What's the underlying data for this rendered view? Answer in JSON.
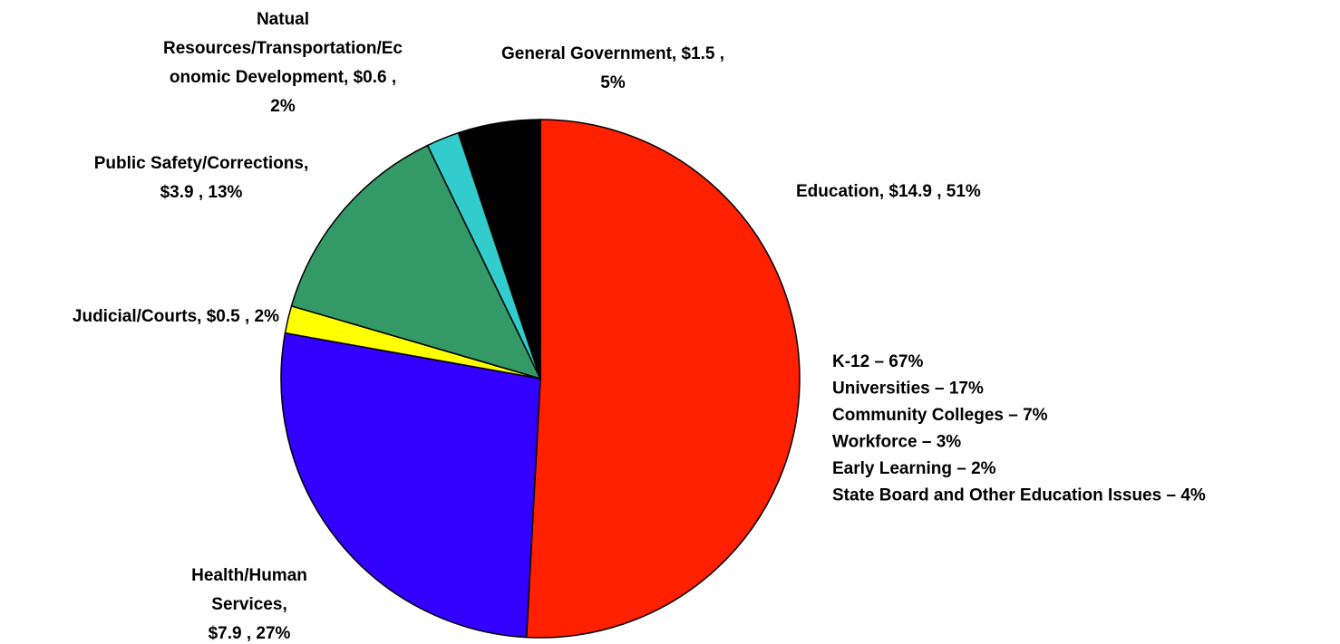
{
  "chart_data": {
    "type": "pie",
    "values": [
      14.9,
      7.9,
      0.5,
      3.9,
      0.6,
      1.5
    ],
    "value_labels": [
      [
        "Education, $14.9 , 51%"
      ],
      [
        "Health/Human",
        "Services,",
        "$7.9 , 27%"
      ],
      [
        "Judicial/Courts, $0.5 , 2%"
      ],
      [
        "Public Safety/Corrections,",
        "$3.9 , 13%"
      ],
      [
        "Natual",
        "Resources/Transportation/Ec",
        "onomic Development, $0.6 ,",
        "2%"
      ],
      [
        "General Government, $1.5 ,",
        "5%"
      ]
    ],
    "colors": [
      "#ff2000",
      "#3300ff",
      "#ffff00",
      "#339966",
      "#33cccc",
      "#000000"
    ],
    "annotations": [
      "K-12 – 67%",
      "Universities – 17%",
      "Community Colleges – 7%",
      "Workforce – 3%",
      "Early Learning – 2%",
      "State Board and Other Education Issues – 4%"
    ]
  }
}
